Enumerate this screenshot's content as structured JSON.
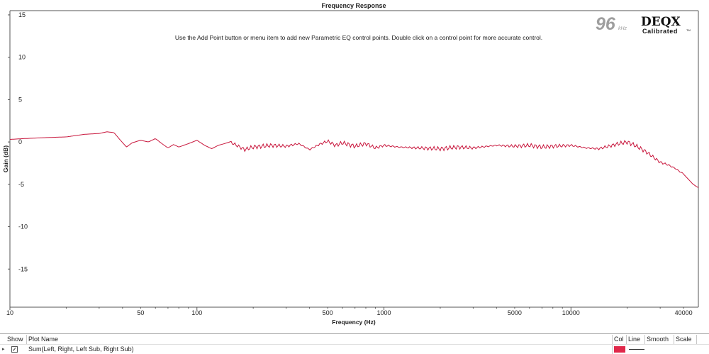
{
  "chart_data": {
    "type": "line",
    "title": "Frequency Response",
    "instruction": "Use the Add Point button or menu item to add new Parametric EQ control points.  Double click on a control point for more accurate control.",
    "xlabel": "Frequency (Hz)",
    "ylabel": "Gain (dB)",
    "xscale": "log",
    "xlim": [
      10,
      48000
    ],
    "ylim": [
      -19.5,
      15.5
    ],
    "x_ticks": [
      10,
      50,
      100,
      500,
      1000,
      5000,
      10000,
      40000
    ],
    "x_tick_labels": [
      "10",
      "50",
      "100",
      "500",
      "1000",
      "5000",
      "10000",
      "40000"
    ],
    "y_ticks": [
      15,
      10,
      5,
      0,
      -5,
      -10,
      -15
    ],
    "y_tick_labels": [
      "15",
      "10",
      "5",
      "0",
      "-5",
      "-10",
      "-15"
    ],
    "grid": false,
    "series": [
      {
        "name": "Sum(Left, Right, Left Sub, Right Sub)",
        "color": "#c8163c",
        "x": [
          10,
          12,
          15,
          20,
          25,
          30,
          33,
          36,
          39,
          42,
          45,
          50,
          55,
          60,
          65,
          70,
          75,
          80,
          90,
          100,
          110,
          120,
          130,
          140,
          150,
          160,
          180,
          200,
          250,
          300,
          350,
          400,
          450,
          500,
          550,
          600,
          700,
          800,
          900,
          1000,
          1200,
          1500,
          2000,
          2500,
          3000,
          4000,
          5000,
          6000,
          7000,
          8000,
          10000,
          12000,
          14000,
          16000,
          18000,
          20000,
          22000,
          25000,
          28000,
          30000,
          33000,
          36000,
          40000,
          45000,
          48000
        ],
        "y": [
          0.3,
          0.4,
          0.5,
          0.6,
          0.9,
          1.0,
          1.2,
          1.1,
          0.2,
          -0.6,
          -0.1,
          0.2,
          0.0,
          0.4,
          -0.2,
          -0.7,
          -0.3,
          -0.6,
          -0.2,
          0.2,
          -0.4,
          -0.8,
          -0.4,
          -0.2,
          0.0,
          -0.3,
          -0.9,
          -0.6,
          -0.4,
          -0.5,
          -0.2,
          -0.9,
          -0.3,
          0.1,
          -0.4,
          -0.1,
          -0.5,
          -0.2,
          -0.7,
          -0.4,
          -0.6,
          -0.7,
          -0.8,
          -0.6,
          -0.7,
          -0.4,
          -0.5,
          -0.4,
          -0.6,
          -0.5,
          -0.4,
          -0.7,
          -0.8,
          -0.5,
          -0.2,
          0.0,
          -0.4,
          -1.1,
          -1.9,
          -2.4,
          -2.7,
          -3.1,
          -3.8,
          -5.0,
          -5.4
        ]
      }
    ]
  },
  "badge": {
    "rate_number": "96",
    "rate_unit": "kHz",
    "brand": "DEQX",
    "brand_sub": "Calibrated",
    "tm": "TM"
  },
  "legend": {
    "headers": {
      "show": "Show",
      "plot_name": "Plot Name",
      "col": "Col",
      "line": "Line",
      "smooth": "Smooth",
      "scale": "Scale"
    },
    "rows": [
      {
        "checked": true,
        "check_glyph": "✓",
        "arrow_glyph": "▸",
        "name": "Sum(Left, Right, Left Sub, Right Sub)",
        "color": "#e0284a"
      }
    ]
  }
}
